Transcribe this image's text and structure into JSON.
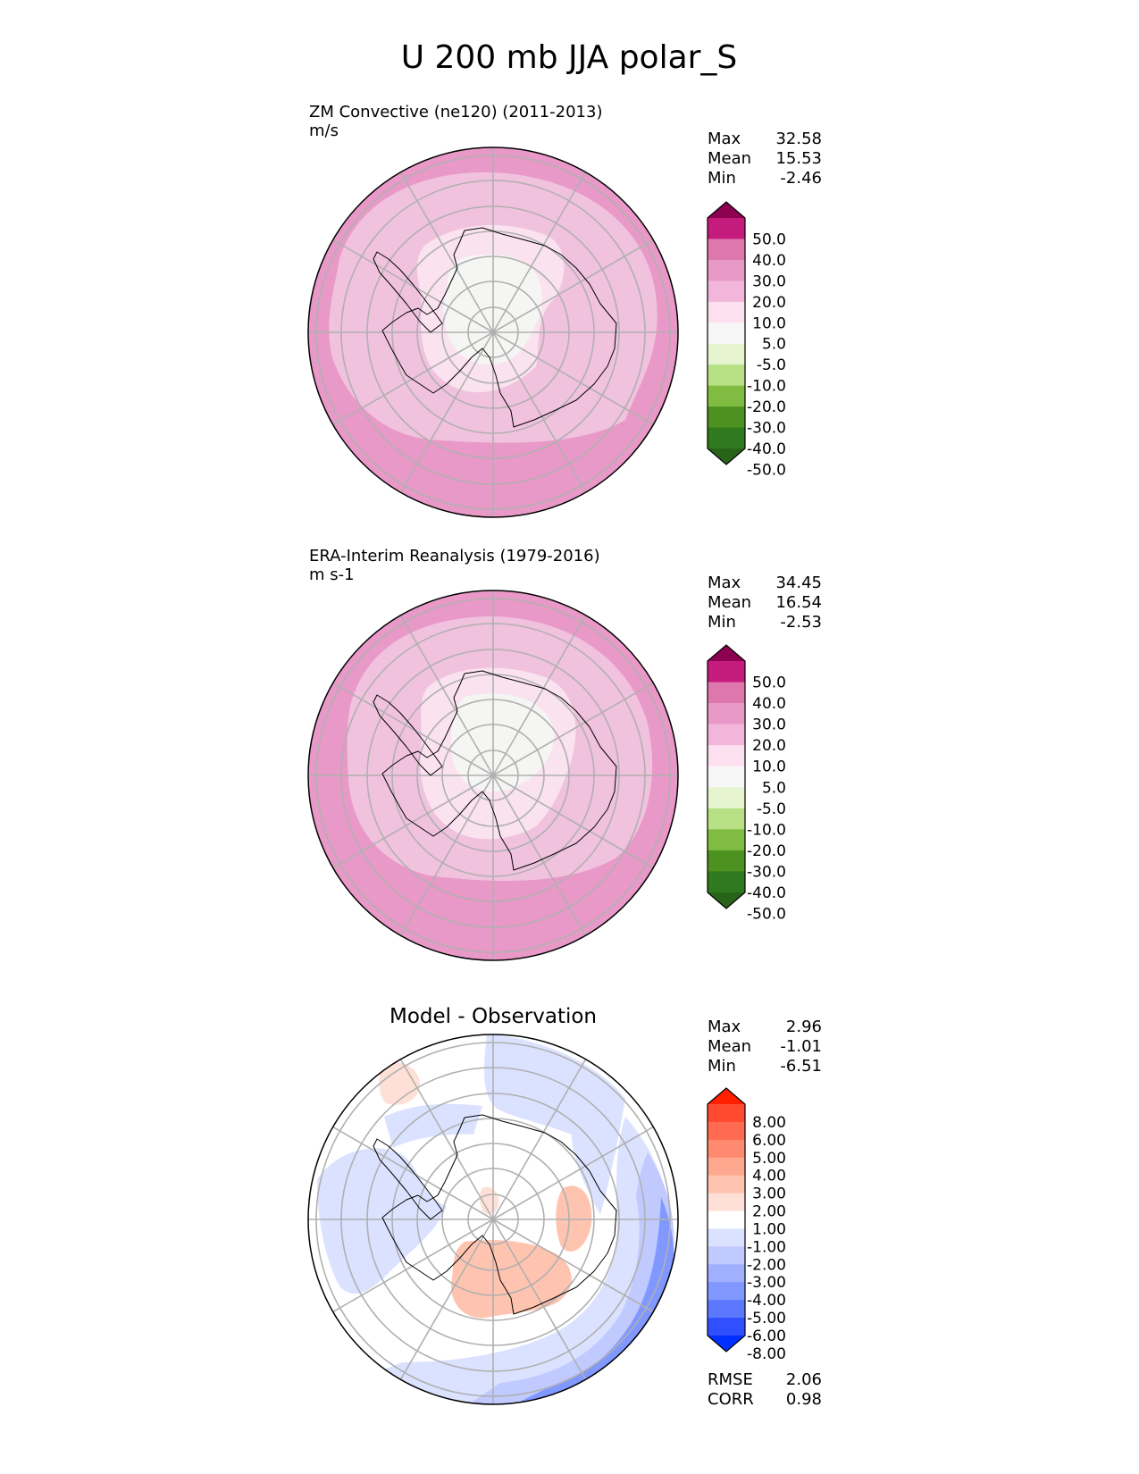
{
  "figure": {
    "title": "U 200 mb JJA polar_S"
  },
  "chart_data": [
    {
      "type": "heatmap",
      "projection": "south-polar-stereographic",
      "title": "ZM Convective (ne120) (2011-2013)",
      "units": "m/s",
      "stats": {
        "max_label": "Max",
        "max": "32.58",
        "mean_label": "Mean",
        "mean": "15.53",
        "min_label": "Min",
        "min": "-2.46"
      },
      "colorbar": {
        "levels": [
          "50.0",
          "40.0",
          "30.0",
          "20.0",
          "10.0",
          "5.0",
          "-5.0",
          "-10.0",
          "-20.0",
          "-30.0",
          "-40.0",
          "-50.0"
        ],
        "colors": [
          "#8e0152",
          "#c51b7d",
          "#de77ae",
          "#e999c8",
          "#f1b6da",
          "#fde0ef",
          "#f7f7f7",
          "#e6f5d0",
          "#b8e186",
          "#7fbc41",
          "#4d9221",
          "#2f7a1e",
          "#276419"
        ]
      },
      "fill_bands": [
        {
          "level_index": 3,
          "color": "#e999c8"
        },
        {
          "level_index": 4,
          "color": "#f1c2de"
        },
        {
          "level_index": 5,
          "color": "#fae2ef"
        },
        {
          "level_index": 6,
          "color": "#f5f5f3"
        },
        {
          "level_index": 2,
          "color": "#dc78b2"
        }
      ]
    },
    {
      "type": "heatmap",
      "projection": "south-polar-stereographic",
      "title": "ERA-Interim Reanalysis (1979-2016)",
      "units": "m s-1",
      "stats": {
        "max_label": "Max",
        "max": "34.45",
        "mean_label": "Mean",
        "mean": "16.54",
        "min_label": "Min",
        "min": "-2.53"
      },
      "colorbar": {
        "levels": [
          "50.0",
          "40.0",
          "30.0",
          "20.0",
          "10.0",
          "5.0",
          "-5.0",
          "-10.0",
          "-20.0",
          "-30.0",
          "-40.0",
          "-50.0"
        ],
        "colors": [
          "#8e0152",
          "#c51b7d",
          "#de77ae",
          "#e999c8",
          "#f1b6da",
          "#fde0ef",
          "#f7f7f7",
          "#e6f5d0",
          "#b8e186",
          "#7fbc41",
          "#4d9221",
          "#2f7a1e",
          "#276419"
        ]
      },
      "fill_bands": [
        {
          "level_index": 3,
          "color": "#e999c8"
        },
        {
          "level_index": 4,
          "color": "#f1c2de"
        },
        {
          "level_index": 5,
          "color": "#fae2ef"
        },
        {
          "level_index": 6,
          "color": "#f5f5f3"
        },
        {
          "level_index": 2,
          "color": "#dc78b2"
        }
      ]
    },
    {
      "type": "heatmap",
      "projection": "south-polar-stereographic",
      "title": "Model - Observation",
      "units": "",
      "stats": {
        "max_label": "Max",
        "max": "2.96",
        "mean_label": "Mean",
        "mean": "-1.01",
        "min_label": "Min",
        "min": "-6.51"
      },
      "metrics": {
        "rmse_label": "RMSE",
        "rmse": "2.06",
        "corr_label": "CORR",
        "corr": "0.98"
      },
      "colorbar": {
        "levels": [
          "8.00",
          "6.00",
          "5.00",
          "4.00",
          "3.00",
          "2.00",
          "1.00",
          "-1.00",
          "-2.00",
          "-3.00",
          "-4.00",
          "-5.00",
          "-6.00",
          "-8.00"
        ],
        "colors": [
          "#ff2000",
          "#ff4a30",
          "#ff6a50",
          "#ff8a70",
          "#ffa890",
          "#ffc4b0",
          "#ffe0d6",
          "#ffffff",
          "#dbe2ff",
          "#c0caff",
          "#a0b0ff",
          "#8098ff",
          "#5c78ff",
          "#3050ff",
          "#0030ff"
        ]
      }
    }
  ]
}
